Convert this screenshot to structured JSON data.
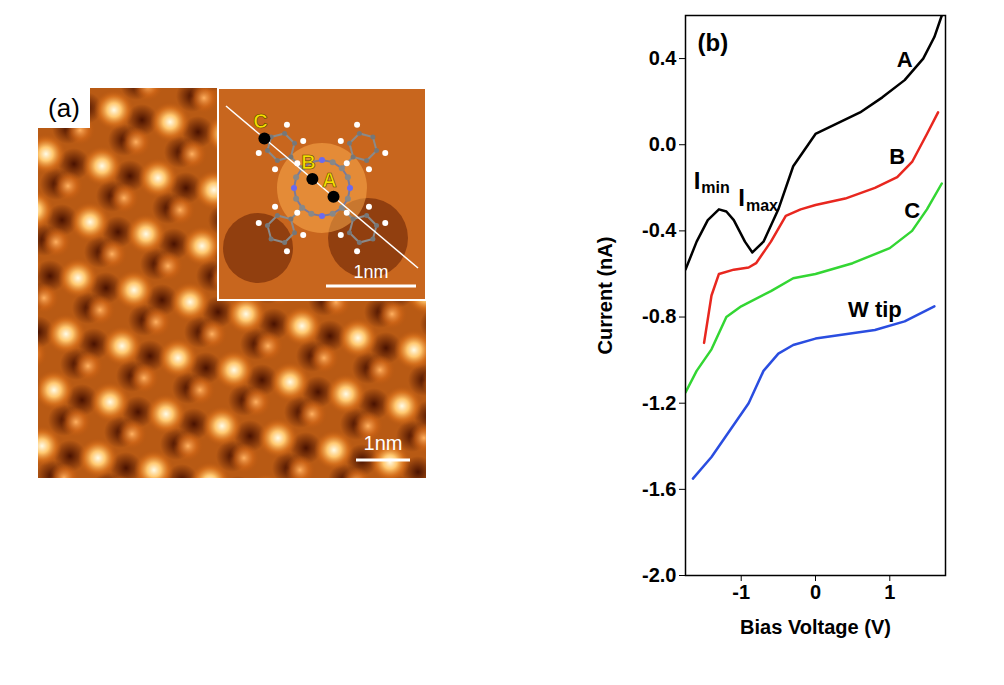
{
  "image_panel": {
    "label": "(a)",
    "scale_bar": "1nm",
    "inset": {
      "scale_bar": "1nm",
      "site_labels": [
        "C",
        "B",
        "A"
      ]
    }
  },
  "chart_data": {
    "type": "line",
    "panel_label": "(b)",
    "x_label": "Bias Voltage (V)",
    "y_label": "Current (nA)",
    "xlim": [
      -1.75,
      1.75
    ],
    "xticks": [
      -1,
      0,
      1
    ],
    "ylim": [
      -2.0,
      0.6
    ],
    "yticks": [
      {
        "value": -2,
        "label": "-2.0"
      },
      -1.6,
      -1.2,
      -0.8,
      -0.4,
      {
        "value": 0,
        "label": "0.0"
      },
      0.4
    ],
    "annotations": [
      {
        "text": "I",
        "subscript": "min",
        "x": -1.55,
        "y": -0.17
      },
      {
        "text": "I",
        "subscript": "max",
        "x": -0.95,
        "y": -0.25
      }
    ],
    "series": [
      {
        "name": "A",
        "color": "#000000",
        "x": [
          -1.75,
          -1.6,
          -1.45,
          -1.3,
          -1.2,
          -1.1,
          -0.95,
          -0.85,
          -0.7,
          -0.5,
          -0.3,
          -0.1,
          0,
          0.3,
          0.6,
          0.9,
          1.2,
          1.45,
          1.6,
          1.7
        ],
        "values": [
          -0.58,
          -0.45,
          -0.35,
          -0.3,
          -0.31,
          -0.35,
          -0.45,
          -0.5,
          -0.45,
          -0.3,
          -0.1,
          0,
          0.05,
          0.1,
          0.15,
          0.22,
          0.3,
          0.4,
          0.5,
          0.6
        ]
      },
      {
        "name": "B",
        "color": "#e8271f",
        "x": [
          -1.5,
          -1.4,
          -1.3,
          -1.1,
          -0.9,
          -0.8,
          -0.6,
          -0.4,
          -0.2,
          0,
          0.4,
          0.8,
          1.1,
          1.3,
          1.5,
          1.65
        ],
        "values": [
          -0.92,
          -0.7,
          -0.6,
          -0.58,
          -0.57,
          -0.55,
          -0.45,
          -0.33,
          -0.3,
          -0.28,
          -0.25,
          -0.2,
          -0.15,
          -0.08,
          0.05,
          0.15
        ]
      },
      {
        "name": "C",
        "color": "#33d633",
        "x": [
          -1.75,
          -1.6,
          -1.4,
          -1.2,
          -1.0,
          -0.6,
          -0.3,
          0,
          0.5,
          1.0,
          1.3,
          1.5,
          1.7
        ],
        "values": [
          -1.15,
          -1.05,
          -0.95,
          -0.8,
          -0.75,
          -0.68,
          -0.62,
          -0.6,
          -0.55,
          -0.48,
          -0.4,
          -0.3,
          -0.18
        ]
      },
      {
        "name": "W tip",
        "color": "#2a4de0",
        "x": [
          -1.65,
          -1.4,
          -1.1,
          -0.9,
          -0.7,
          -0.5,
          -0.3,
          0,
          0.4,
          0.8,
          1.2,
          1.6
        ],
        "values": [
          -1.55,
          -1.45,
          -1.3,
          -1.2,
          -1.05,
          -0.97,
          -0.93,
          -0.9,
          -0.88,
          -0.86,
          -0.82,
          -0.75
        ]
      }
    ]
  }
}
